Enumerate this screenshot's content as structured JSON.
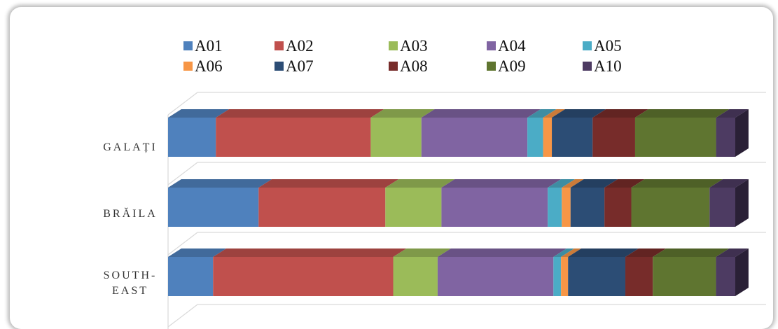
{
  "chart_data": {
    "type": "bar",
    "orientation": "horizontal",
    "stacked": "100%",
    "style": "3d",
    "categories": [
      "GALAȚI",
      "BRĂILA",
      "SOUTH-EAST"
    ],
    "series": [
      {
        "name": "A01",
        "color": "#4F81BD",
        "values": [
          8.2,
          15.5,
          7.7
        ]
      },
      {
        "name": "A02",
        "color": "#C0504D",
        "values": [
          26.6,
          21.7,
          30.8
        ]
      },
      {
        "name": "A03",
        "color": "#9BBB59",
        "values": [
          8.7,
          9.6,
          7.6
        ]
      },
      {
        "name": "A04",
        "color": "#8064A2",
        "values": [
          18.2,
          18.2,
          19.8
        ]
      },
      {
        "name": "A05",
        "color": "#4BACC6",
        "values": [
          2.7,
          2.4,
          1.3
        ]
      },
      {
        "name": "A06",
        "color": "#F79646",
        "values": [
          1.5,
          1.5,
          1.2
        ]
      },
      {
        "name": "A07",
        "color": "#2C4D75",
        "values": [
          7.0,
          5.8,
          9.8
        ]
      },
      {
        "name": "A08",
        "color": "#772C2A",
        "values": [
          7.3,
          4.6,
          4.7
        ]
      },
      {
        "name": "A09",
        "color": "#5F7530",
        "values": [
          13.9,
          13.4,
          10.8
        ]
      },
      {
        "name": "A10",
        "color": "#4D3B62",
        "values": [
          3.3,
          4.4,
          3.3
        ]
      }
    ],
    "legend": "top",
    "grid": true
  }
}
